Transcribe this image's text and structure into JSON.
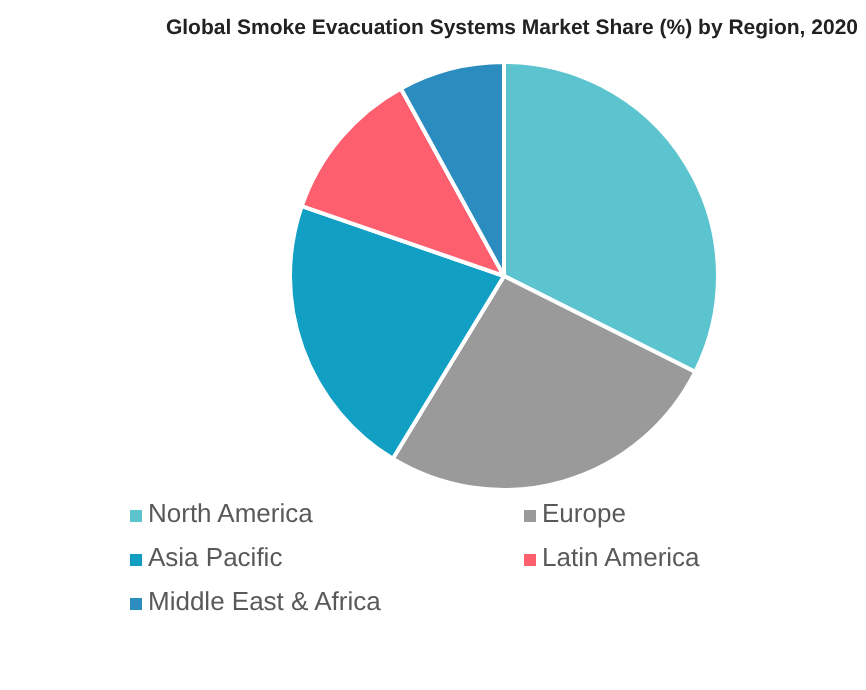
{
  "chart_data": {
    "type": "pie",
    "title": "Global Smoke Evacuation Systems Market Share (%) by Region, 2020",
    "categories": [
      "North America",
      "Europe",
      "Asia Pacific",
      "Latin America",
      "Middle East & Africa"
    ],
    "values": [
      32.4,
      26.3,
      21.6,
      11.7,
      8.0
    ],
    "colors": [
      "#5bc4cf",
      "#9a9a9a",
      "#129fc4",
      "#fd5f6f",
      "#2a8cbf"
    ],
    "legend": "bottom"
  }
}
